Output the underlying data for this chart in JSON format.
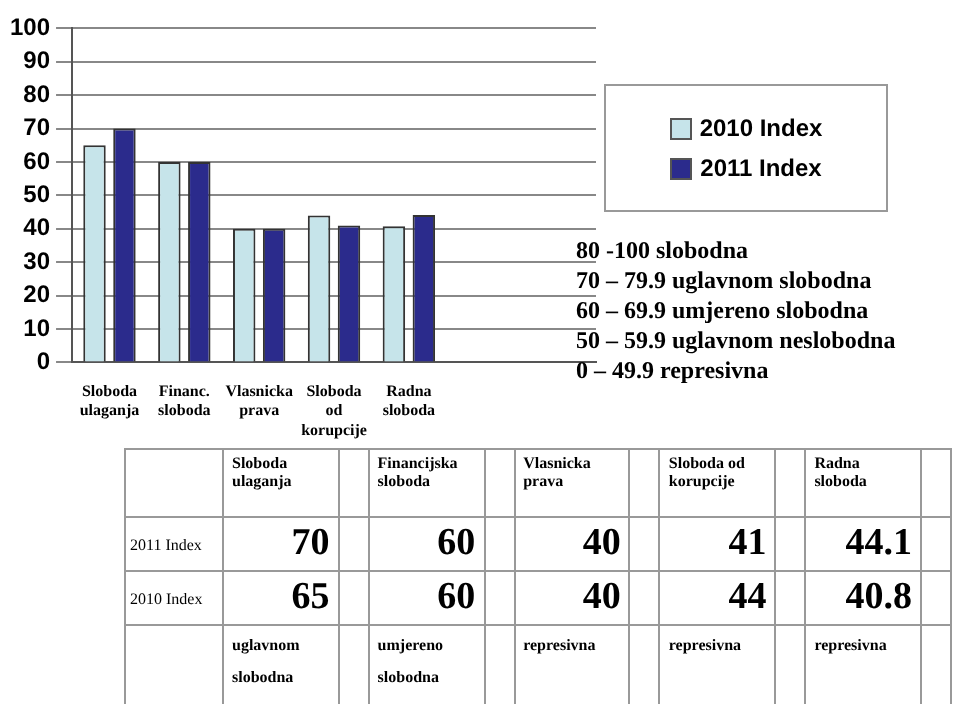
{
  "chart_data": {
    "type": "bar",
    "categories": [
      "Sloboda ulaganja",
      "Financ. sloboda",
      "Vlasnicka prava",
      "Sloboda od korupcije",
      "Radna sloboda",
      null,
      null
    ],
    "series": [
      {
        "name": "2010 Index",
        "color": "#c6e4ea",
        "values": [
          65,
          60,
          40,
          44,
          40.8,
          null,
          null
        ]
      },
      {
        "name": "2011 Index",
        "color": "#2b2b8c",
        "values": [
          70,
          60,
          40,
          41,
          44.1,
          null,
          null
        ]
      }
    ],
    "ylim": [
      0,
      100
    ],
    "yticks": [
      0,
      10,
      20,
      30,
      40,
      50,
      60,
      70,
      80,
      90,
      100
    ],
    "grid": "y",
    "legend": "right",
    "annotations": [
      "80 -100 slobodna",
      "70 – 79.9 uglavnom slobodna",
      "60 – 69.9 umjereno slobodna",
      "50 – 59.9 uglavnom neslobodna",
      "0 – 49.9 represivna",
      "Sloboda ulaganja",
      "Financijska sloboda",
      "Vlasnicka prava",
      "Sloboda od korupcije",
      "Radna sloboda",
      "uglavnom slobodna",
      "umjereno slobodna",
      "represivna",
      "represivna",
      "represivna",
      "70",
      "60",
      "40",
      "41",
      "44.1",
      "65",
      "60",
      "40",
      "44",
      "40.8"
    ]
  }
}
